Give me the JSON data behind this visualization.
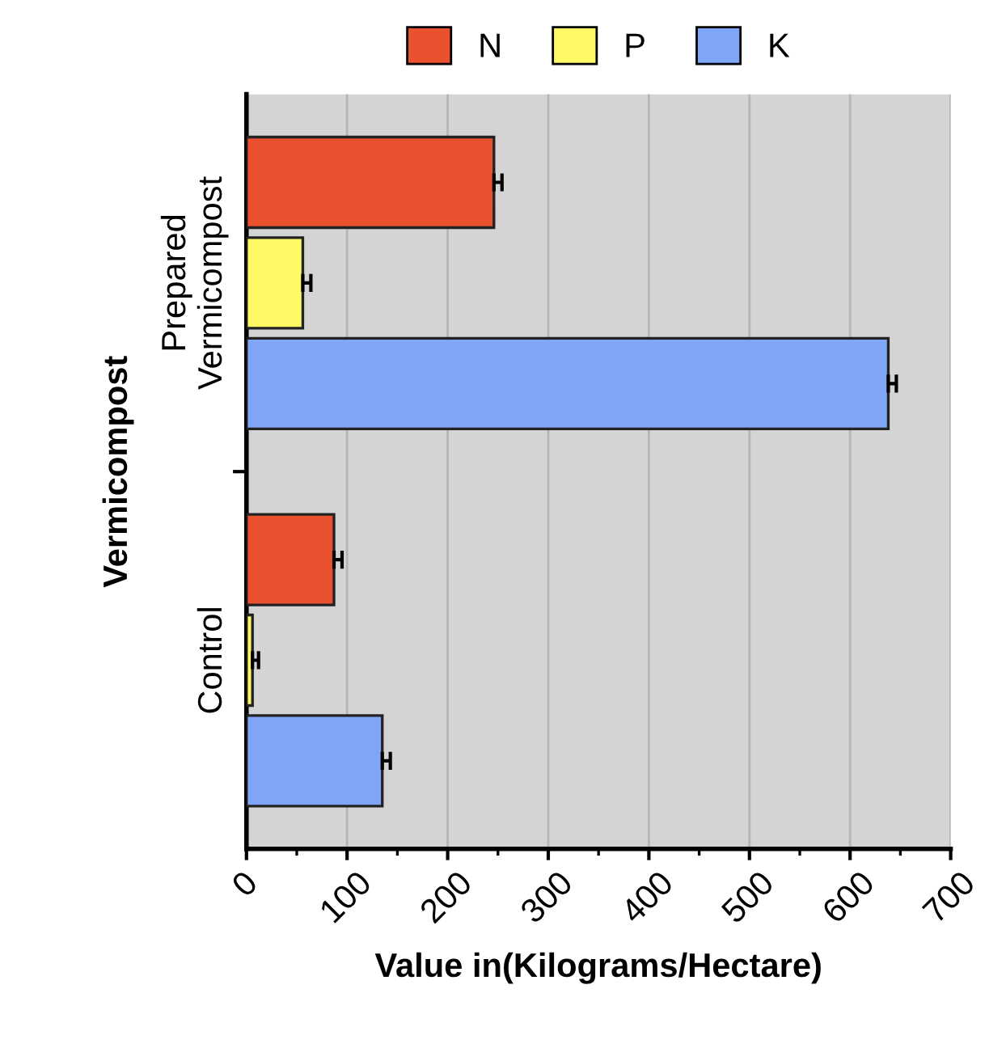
{
  "chart_data": {
    "type": "bar",
    "orientation": "horizontal",
    "categories": [
      "Prepared\nVermicompost",
      "Control"
    ],
    "series": [
      {
        "name": "N",
        "color": "#e9512f",
        "values": [
          246,
          87
        ],
        "errors": [
          [
            246,
            254
          ],
          [
            87,
            95
          ]
        ]
      },
      {
        "name": "P",
        "color": "#fef964",
        "values": [
          56,
          6
        ],
        "errors": [
          [
            56,
            64
          ],
          [
            6,
            12
          ]
        ]
      },
      {
        "name": "K",
        "color": "#7fa6f6",
        "values": [
          638,
          135
        ],
        "errors": [
          [
            638,
            646
          ],
          [
            135,
            143
          ]
        ]
      }
    ],
    "xlabel": "Value in(Kilograms/Hectare)",
    "ylabel": "Vermicompost",
    "xlim": [
      0,
      700
    ],
    "xticks": [
      0,
      100,
      200,
      300,
      400,
      500,
      600,
      700
    ],
    "grid": "x",
    "legend": "top"
  }
}
